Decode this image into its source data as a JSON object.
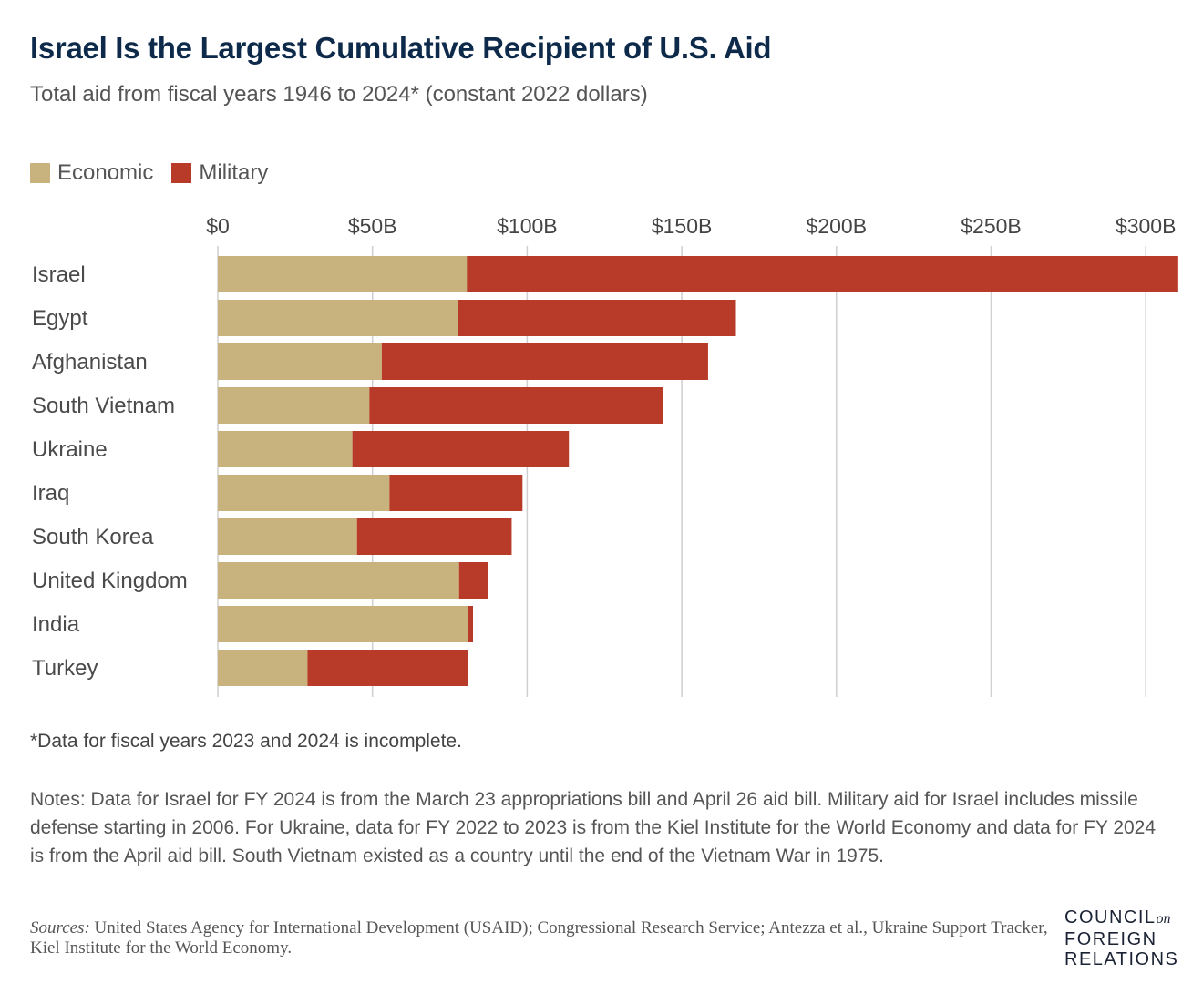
{
  "title": "Israel Is the Largest Cumulative Recipient of U.S. Aid",
  "subtitle": "Total aid from fiscal years 1946 to 2024* (constant 2022 dollars)",
  "legend": {
    "economic_label": "Economic",
    "military_label": "Military"
  },
  "colors": {
    "economic": "#c8b27d",
    "military": "#b83a28",
    "grid": "#cfcfcf",
    "title": "#0d2a4a"
  },
  "chart_data": {
    "type": "bar",
    "orientation": "horizontal",
    "stacked": true,
    "title": "Israel Is the Largest Cumulative Recipient of U.S. Aid",
    "subtitle": "Total aid from fiscal years 1946 to 2024* (constant 2022 dollars)",
    "categories": [
      "Israel",
      "Egypt",
      "Afghanistan",
      "South Vietnam",
      "Ukraine",
      "Iraq",
      "South Korea",
      "United Kingdom",
      "India",
      "Turkey"
    ],
    "series": [
      {
        "name": "Economic",
        "values": [
          80.5,
          77.5,
          53,
          49,
          43.5,
          55.5,
          45,
          78,
          81,
          29
        ]
      },
      {
        "name": "Military",
        "values": [
          230,
          90,
          105.5,
          95,
          70,
          43,
          50,
          9.5,
          1.5,
          52
        ]
      }
    ],
    "xlim": [
      0,
      310
    ],
    "xticks": [
      0,
      50,
      100,
      150,
      200,
      250,
      300
    ],
    "xtick_labels": [
      "$0",
      "$50B",
      "$100B",
      "$150B",
      "$200B",
      "$250B",
      "$300B"
    ],
    "grid": true,
    "legend_position": "top-left",
    "unit": "billions of constant 2022 dollars"
  },
  "footnote": "*Data for fiscal years 2023 and 2024 is incomplete.",
  "notes": "Notes: Data for Israel for FY 2024 is from the March 23 appropriations bill and April 26 aid bill. Military aid for Israel includes missile defense starting in 2006. For Ukraine, data for FY 2022 to 2023 is from the Kiel Institute for the World Economy and data for FY 2024 is from the April aid bill. South Vietnam existed as a country until the end of the Vietnam War in 1975.",
  "sources": {
    "label": "Sources:",
    "text": " United States Agency for International Development (USAID); Congressional Research Service; Antezza et al., Ukraine Support Tracker, Kiel Institute for the World Economy."
  },
  "logo": {
    "line1": "COUNCIL",
    "on": "on",
    "line2": "FOREIGN",
    "line3": "RELATIONS"
  }
}
